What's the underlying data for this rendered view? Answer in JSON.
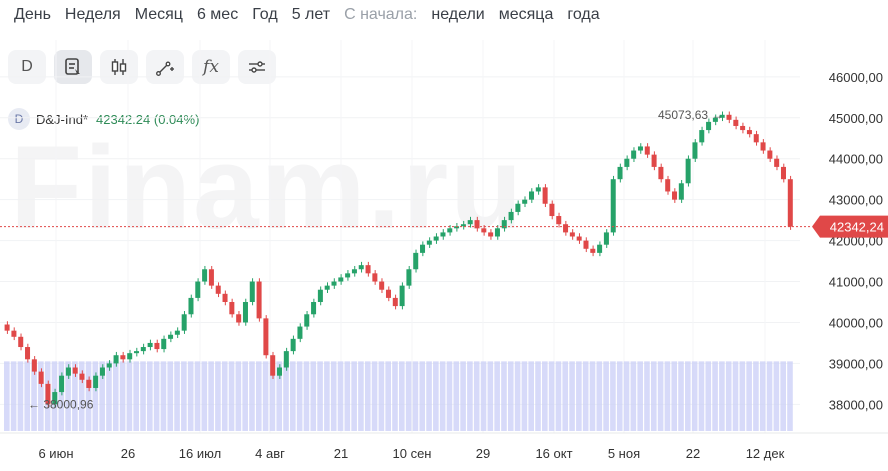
{
  "periods": {
    "items": [
      "День",
      "Неделя",
      "Месяц",
      "6 мес",
      "Год",
      "5 лет"
    ],
    "from_start_label": "С начала:",
    "from_start_items": [
      "недели",
      "месяца",
      "года"
    ]
  },
  "toolbar": {
    "buttons": [
      {
        "label": "D",
        "icon": "interval"
      },
      {
        "label": "",
        "icon": "chart-type-icon"
      },
      {
        "label": "",
        "icon": "candles-icon"
      },
      {
        "label": "",
        "icon": "draw-line-icon"
      },
      {
        "label": "fx",
        "icon": "function-icon"
      },
      {
        "label": "",
        "icon": "settings-sliders-icon"
      }
    ]
  },
  "legend": {
    "badge": "D",
    "ticker": "D&J-Ind*",
    "last": "42342.24",
    "change": "(0.04%)"
  },
  "watermark": "Finam.ru",
  "colors": {
    "up": "#26a269",
    "down": "#e04848",
    "volume": "#c9cdf7",
    "price_line": "#e04848"
  },
  "chart_data": {
    "type": "candlestick",
    "ylim": [
      37300,
      46900
    ],
    "y_ticks": [
      "46000,00",
      "45000,00",
      "44000,00",
      "43000,00",
      "42000,00",
      "41000,00",
      "40000,00",
      "39000,00",
      "38000,00"
    ],
    "x_ticks": [
      "6 июн",
      "26",
      "16 июл",
      "4 авг",
      "21",
      "10 сен",
      "29",
      "16 окт",
      "5 ноя",
      "22",
      "12 дек"
    ],
    "current_price": "42342,24",
    "max_label": "45073,63",
    "min_label": "38000,96",
    "closes": [
      39800,
      39650,
      39400,
      39100,
      38800,
      38500,
      38000,
      38300,
      38700,
      38900,
      38750,
      38600,
      38400,
      38700,
      38900,
      39000,
      39200,
      39100,
      39250,
      39300,
      39400,
      39500,
      39350,
      39600,
      39700,
      39800,
      40200,
      40600,
      41000,
      41300,
      40900,
      40700,
      40500,
      40200,
      40000,
      40500,
      41000,
      40100,
      39200,
      38700,
      38900,
      39300,
      39600,
      39900,
      40200,
      40500,
      40800,
      40900,
      41000,
      41100,
      41200,
      41300,
      41400,
      41200,
      41000,
      40800,
      40600,
      40400,
      40900,
      41300,
      41700,
      41900,
      42000,
      42100,
      42200,
      42300,
      42350,
      42400,
      42500,
      42300,
      42200,
      42100,
      42300,
      42500,
      42700,
      42900,
      43000,
      43200,
      43300,
      42900,
      42600,
      42400,
      42200,
      42100,
      42000,
      41800,
      41700,
      41900,
      42200,
      43500,
      43800,
      44000,
      44200,
      44300,
      44100,
      43800,
      43500,
      43200,
      43000,
      43400,
      44000,
      44400,
      44700,
      44900,
      45000,
      45073,
      44950,
      44800,
      44700,
      44600,
      44400,
      44200,
      44000,
      43800,
      43500,
      42342
    ],
    "volumes": [
      1,
      1,
      1,
      1,
      1,
      1,
      1,
      1,
      1,
      1,
      1,
      1,
      1,
      1,
      1,
      1,
      1,
      1,
      1,
      1,
      1,
      1,
      1,
      1,
      1,
      1,
      1,
      1,
      1,
      1,
      1,
      1,
      1,
      1,
      1,
      1,
      1,
      1,
      1,
      1,
      1,
      1,
      1,
      1,
      1,
      1,
      1,
      1,
      1,
      1,
      1,
      1,
      1,
      1,
      1,
      1,
      1,
      1,
      1,
      1,
      1,
      1,
      1,
      1,
      1,
      1,
      1,
      1,
      1,
      1,
      1,
      1,
      1,
      1,
      1,
      1,
      1,
      1,
      1,
      1,
      1,
      1,
      1,
      1,
      1,
      1,
      1,
      1,
      1,
      1,
      1,
      1,
      1,
      1,
      1,
      1,
      1,
      1,
      1,
      1,
      1,
      1,
      1,
      1,
      1,
      1,
      1,
      1,
      1,
      1,
      1,
      1,
      1,
      1,
      1,
      1,
      1
    ]
  }
}
